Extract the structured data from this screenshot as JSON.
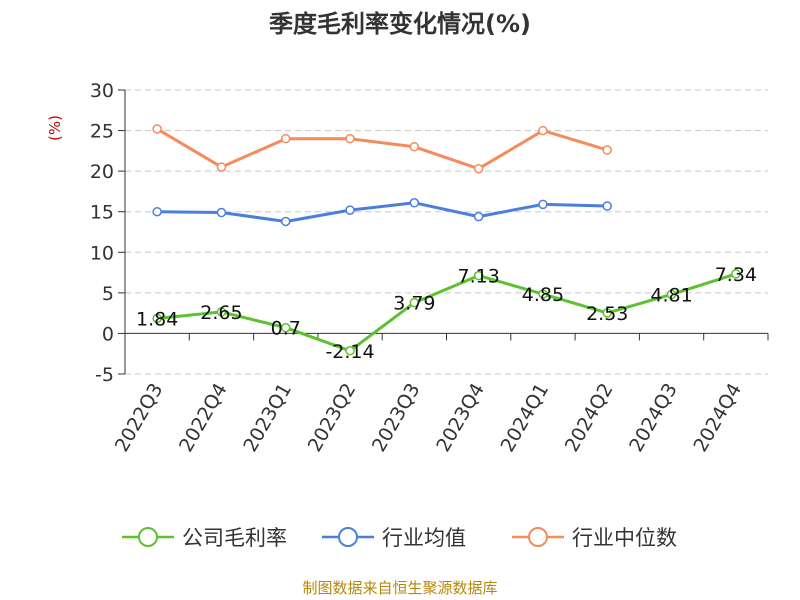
{
  "chart_data": {
    "type": "line",
    "title": "季度毛利率变化情况(%)",
    "yunit": "(%)",
    "categories": [
      "2022Q3",
      "2022Q4",
      "2023Q1",
      "2023Q2",
      "2023Q3",
      "2023Q4",
      "2024Q1",
      "2024Q2",
      "2024Q3",
      "2024Q4"
    ],
    "ylim": [
      -5,
      30
    ],
    "yticks": [
      -5,
      0,
      5,
      10,
      15,
      20,
      25,
      30
    ],
    "grid": true,
    "legend_position": "bottom",
    "series": [
      {
        "name": "公司毛利率",
        "color": "#5cc22f",
        "show_labels": true,
        "values": [
          1.84,
          2.65,
          0.7,
          -2.14,
          3.79,
          7.13,
          4.85,
          2.53,
          4.81,
          7.34
        ],
        "labels": [
          "1.84",
          "2.65",
          "0.7",
          "-2.14",
          "3.79",
          "7.13",
          "4.85",
          "2.53",
          "4.81",
          "7.34"
        ]
      },
      {
        "name": "行业均值",
        "color": "#4a7fdc",
        "show_labels": false,
        "values": [
          15.0,
          14.9,
          13.8,
          15.2,
          16.1,
          14.4,
          15.9,
          15.7,
          null,
          null
        ]
      },
      {
        "name": "行业中位数",
        "color": "#f58a5a",
        "show_labels": false,
        "values": [
          25.2,
          20.5,
          24.0,
          24.0,
          23.0,
          20.3,
          25.0,
          22.6,
          null,
          null
        ]
      }
    ]
  },
  "source": "制图数据来自恒生聚源数据库"
}
